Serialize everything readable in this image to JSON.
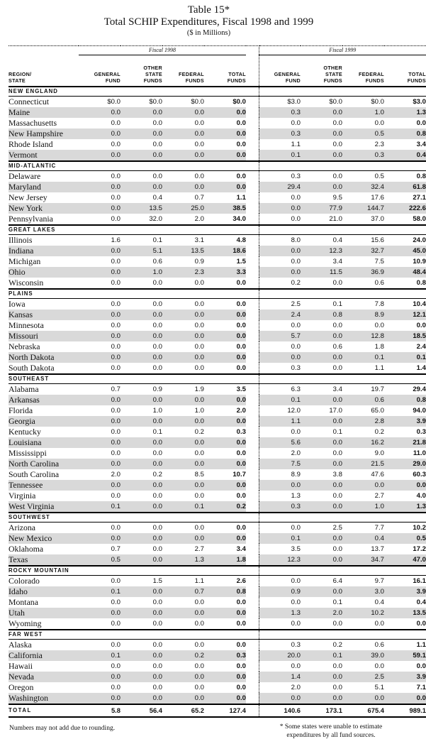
{
  "title": "Table 15*",
  "subtitle": "Total SCHIP Expenditures, Fiscal 1998 and 1999",
  "units": "($ in Millions)",
  "fiscal_labels": [
    "Fiscal 1998",
    "Fiscal 1999"
  ],
  "columns": {
    "region": [
      "REGION/",
      "STATE"
    ],
    "general": [
      "GENERAL",
      "FUND"
    ],
    "other": [
      "OTHER",
      "STATE",
      "FUNDS"
    ],
    "federal": [
      "FEDERAL",
      "FUNDS"
    ],
    "total": [
      "TOTAL",
      "FUNDS"
    ]
  },
  "sections": [
    {
      "region": "NEW ENGLAND",
      "rows": [
        {
          "state": "Connecticut",
          "v": [
            "$0.0",
            "$0.0",
            "$0.0",
            "$0.0",
            "$3.0",
            "$0.0",
            "$0.0",
            "$3.0"
          ]
        },
        {
          "state": "Maine",
          "v": [
            "0.0",
            "0.0",
            "0.0",
            "0.0",
            "0.3",
            "0.0",
            "1.0",
            "1.3"
          ]
        },
        {
          "state": "Massachusetts",
          "v": [
            "0.0",
            "0.0",
            "0.0",
            "0.0",
            "0.0",
            "0.0",
            "0.0",
            "0.0"
          ]
        },
        {
          "state": "New Hampshire",
          "v": [
            "0.0",
            "0.0",
            "0.0",
            "0.0",
            "0.3",
            "0.0",
            "0.5",
            "0.8"
          ]
        },
        {
          "state": "Rhode Island",
          "v": [
            "0.0",
            "0.0",
            "0.0",
            "0.0",
            "1.1",
            "0.0",
            "2.3",
            "3.4"
          ]
        },
        {
          "state": "Vermont",
          "v": [
            "0.0",
            "0.0",
            "0.0",
            "0.0",
            "0.1",
            "0.0",
            "0.3",
            "0.4"
          ]
        }
      ]
    },
    {
      "region": "MID-ATLANTIC",
      "rows": [
        {
          "state": "Delaware",
          "v": [
            "0.0",
            "0.0",
            "0.0",
            "0.0",
            "0.3",
            "0.0",
            "0.5",
            "0.8"
          ]
        },
        {
          "state": "Maryland",
          "v": [
            "0.0",
            "0.0",
            "0.0",
            "0.0",
            "29.4",
            "0.0",
            "32.4",
            "61.8"
          ]
        },
        {
          "state": "New Jersey",
          "v": [
            "0.0",
            "0.4",
            "0.7",
            "1.1",
            "0.0",
            "9.5",
            "17.6",
            "27.1"
          ]
        },
        {
          "state": "New York",
          "v": [
            "0.0",
            "13.5",
            "25.0",
            "38.5",
            "0.0",
            "77.9",
            "144.7",
            "222.6"
          ]
        },
        {
          "state": "Pennsylvania",
          "v": [
            "0.0",
            "32.0",
            "2.0",
            "34.0",
            "0.0",
            "21.0",
            "37.0",
            "58.0"
          ]
        }
      ]
    },
    {
      "region": "GREAT LAKES",
      "rows": [
        {
          "state": "Illinois",
          "v": [
            "1.6",
            "0.1",
            "3.1",
            "4.8",
            "8.0",
            "0.4",
            "15.6",
            "24.0"
          ]
        },
        {
          "state": "Indiana",
          "v": [
            "0.0",
            "5.1",
            "13.5",
            "18.6",
            "0.0",
            "12.3",
            "32.7",
            "45.0"
          ]
        },
        {
          "state": "Michigan",
          "v": [
            "0.0",
            "0.6",
            "0.9",
            "1.5",
            "0.0",
            "3.4",
            "7.5",
            "10.9"
          ]
        },
        {
          "state": "Ohio",
          "v": [
            "0.0",
            "1.0",
            "2.3",
            "3.3",
            "0.0",
            "11.5",
            "36.9",
            "48.4"
          ]
        },
        {
          "state": "Wisconsin",
          "v": [
            "0.0",
            "0.0",
            "0.0",
            "0.0",
            "0.2",
            "0.0",
            "0.6",
            "0.8"
          ]
        }
      ]
    },
    {
      "region": "PLAINS",
      "rows": [
        {
          "state": "Iowa",
          "v": [
            "0.0",
            "0.0",
            "0.0",
            "0.0",
            "2.5",
            "0.1",
            "7.8",
            "10.4"
          ]
        },
        {
          "state": "Kansas",
          "v": [
            "0.0",
            "0.0",
            "0.0",
            "0.0",
            "2.4",
            "0.8",
            "8.9",
            "12.1"
          ]
        },
        {
          "state": "Minnesota",
          "v": [
            "0.0",
            "0.0",
            "0.0",
            "0.0",
            "0.0",
            "0.0",
            "0.0",
            "0.0"
          ]
        },
        {
          "state": "Missouri",
          "v": [
            "0.0",
            "0.0",
            "0.0",
            "0.0",
            "5.7",
            "0.0",
            "12.8",
            "18.5"
          ]
        },
        {
          "state": "Nebraska",
          "v": [
            "0.0",
            "0.0",
            "0.0",
            "0.0",
            "0.0",
            "0.6",
            "1.8",
            "2.4"
          ]
        },
        {
          "state": "North Dakota",
          "v": [
            "0.0",
            "0.0",
            "0.0",
            "0.0",
            "0.0",
            "0.0",
            "0.1",
            "0.1"
          ]
        },
        {
          "state": "South Dakota",
          "v": [
            "0.0",
            "0.0",
            "0.0",
            "0.0",
            "0.3",
            "0.0",
            "1.1",
            "1.4"
          ]
        }
      ]
    },
    {
      "region": "SOUTHEAST",
      "rows": [
        {
          "state": "Alabama",
          "v": [
            "0.7",
            "0.9",
            "1.9",
            "3.5",
            "6.3",
            "3.4",
            "19.7",
            "29.4"
          ]
        },
        {
          "state": "Arkansas",
          "v": [
            "0.0",
            "0.0",
            "0.0",
            "0.0",
            "0.1",
            "0.0",
            "0.6",
            "0.8"
          ]
        },
        {
          "state": "Florida",
          "v": [
            "0.0",
            "1.0",
            "1.0",
            "2.0",
            "12.0",
            "17.0",
            "65.0",
            "94.0"
          ]
        },
        {
          "state": "Georgia",
          "v": [
            "0.0",
            "0.0",
            "0.0",
            "0.0",
            "1.1",
            "0.0",
            "2.8",
            "3.9"
          ]
        },
        {
          "state": "Kentucky",
          "v": [
            "0.0",
            "0.1",
            "0.2",
            "0.3",
            "0.0",
            "0.1",
            "0.2",
            "0.3"
          ]
        },
        {
          "state": "Louisiana",
          "v": [
            "0.0",
            "0.0",
            "0.0",
            "0.0",
            "5.6",
            "0.0",
            "16.2",
            "21.8"
          ]
        },
        {
          "state": "Mississippi",
          "v": [
            "0.0",
            "0.0",
            "0.0",
            "0.0",
            "2.0",
            "0.0",
            "9.0",
            "11.0"
          ]
        },
        {
          "state": "North Carolina",
          "v": [
            "0.0",
            "0.0",
            "0.0",
            "0.0",
            "7.5",
            "0.0",
            "21.5",
            "29.0"
          ]
        },
        {
          "state": "South Carolina",
          "v": [
            "2.0",
            "0.2",
            "8.5",
            "10.7",
            "8.9",
            "3.8",
            "47.6",
            "60.3"
          ]
        },
        {
          "state": "Tennessee",
          "v": [
            "0.0",
            "0.0",
            "0.0",
            "0.0",
            "0.0",
            "0.0",
            "0.0",
            "0.0"
          ]
        },
        {
          "state": "Virginia",
          "v": [
            "0.0",
            "0.0",
            "0.0",
            "0.0",
            "1.3",
            "0.0",
            "2.7",
            "4.0"
          ]
        },
        {
          "state": "West Virginia",
          "v": [
            "0.1",
            "0.0",
            "0.1",
            "0.2",
            "0.3",
            "0.0",
            "1.0",
            "1.3"
          ]
        }
      ]
    },
    {
      "region": "SOUTHWEST",
      "rows": [
        {
          "state": "Arizona",
          "v": [
            "0.0",
            "0.0",
            "0.0",
            "0.0",
            "0.0",
            "2.5",
            "7.7",
            "10.2"
          ]
        },
        {
          "state": "New Mexico",
          "v": [
            "0.0",
            "0.0",
            "0.0",
            "0.0",
            "0.1",
            "0.0",
            "0.4",
            "0.5"
          ]
        },
        {
          "state": "Oklahoma",
          "v": [
            "0.7",
            "0.0",
            "2.7",
            "3.4",
            "3.5",
            "0.0",
            "13.7",
            "17.2"
          ]
        },
        {
          "state": "Texas",
          "v": [
            "0.5",
            "0.0",
            "1.3",
            "1.8",
            "12.3",
            "0.0",
            "34.7",
            "47.0"
          ]
        }
      ]
    },
    {
      "region": "ROCKY MOUNTAIN",
      "rows": [
        {
          "state": "Colorado",
          "v": [
            "0.0",
            "1.5",
            "1.1",
            "2.6",
            "0.0",
            "6.4",
            "9.7",
            "16.1"
          ]
        },
        {
          "state": "Idaho",
          "v": [
            "0.1",
            "0.0",
            "0.7",
            "0.8",
            "0.9",
            "0.0",
            "3.0",
            "3.9"
          ]
        },
        {
          "state": "Montana",
          "v": [
            "0.0",
            "0.0",
            "0.0",
            "0.0",
            "0.0",
            "0.1",
            "0.4",
            "0.4"
          ]
        },
        {
          "state": "Utah",
          "v": [
            "0.0",
            "0.0",
            "0.0",
            "0.0",
            "1.3",
            "2.0",
            "10.2",
            "13.5"
          ]
        },
        {
          "state": "Wyoming",
          "v": [
            "0.0",
            "0.0",
            "0.0",
            "0.0",
            "0.0",
            "0.0",
            "0.0",
            "0.0"
          ]
        }
      ]
    },
    {
      "region": "FAR WEST",
      "rows": [
        {
          "state": "Alaska",
          "v": [
            "0.0",
            "0.0",
            "0.0",
            "0.0",
            "0.3",
            "0.2",
            "0.6",
            "1.1"
          ]
        },
        {
          "state": "California",
          "v": [
            "0.1",
            "0.0",
            "0.2",
            "0.3",
            "20.0",
            "0.1",
            "39.0",
            "59.1"
          ]
        },
        {
          "state": "Hawaii",
          "v": [
            "0.0",
            "0.0",
            "0.0",
            "0.0",
            "0.0",
            "0.0",
            "0.0",
            "0.0"
          ]
        },
        {
          "state": "Nevada",
          "v": [
            "0.0",
            "0.0",
            "0.0",
            "0.0",
            "1.4",
            "0.0",
            "2.5",
            "3.9"
          ]
        },
        {
          "state": "Oregon",
          "v": [
            "0.0",
            "0.0",
            "0.0",
            "0.0",
            "2.0",
            "0.0",
            "5.1",
            "7.1"
          ]
        },
        {
          "state": "Washington",
          "v": [
            "0.0",
            "0.0",
            "0.0",
            "0.0",
            "0.0",
            "0.0",
            "0.0",
            "0.0"
          ]
        }
      ]
    }
  ],
  "total": {
    "label": "TOTAL",
    "v": [
      "5.8",
      "56.4",
      "65.2",
      "127.4",
      "140.6",
      "173.1",
      "675.4",
      "989.1"
    ]
  },
  "footnote_left": "Numbers may not add due to rounding.",
  "footnote_right": [
    "* Some states were unable to estimate",
    "expenditures by all fund sources."
  ],
  "colors": {
    "shade": "#d9d9d9",
    "rule": "#000000"
  }
}
